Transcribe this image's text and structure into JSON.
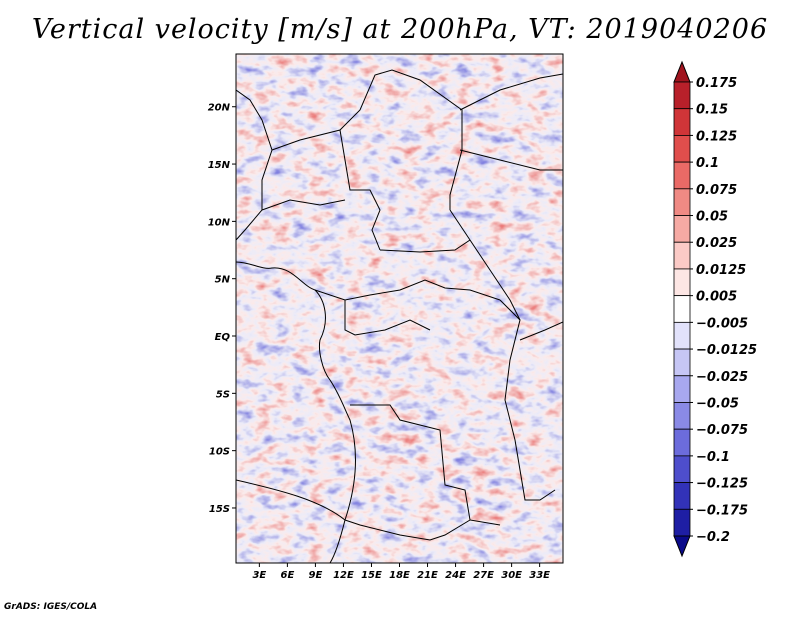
{
  "chart_data": {
    "type": "heatmap",
    "title": "Vertical velocity [m/s] at 200hPa, VT: 2019040206",
    "variable": "Vertical velocity",
    "units": "m/s",
    "level": "200hPa",
    "valid_time": "2019040206",
    "x_axis": {
      "ticks": [
        3,
        6,
        9,
        12,
        15,
        18,
        21,
        24,
        27,
        30,
        33
      ],
      "tick_labels": [
        "3E",
        "6E",
        "9E",
        "12E",
        "15E",
        "18E",
        "21E",
        "24E",
        "27E",
        "30E",
        "33E"
      ],
      "range": [
        0.5,
        35.5
      ]
    },
    "y_axis": {
      "ticks": [
        20,
        15,
        10,
        5,
        0,
        -5,
        -10,
        -15
      ],
      "tick_labels": [
        "20N",
        "15N",
        "10N",
        "5N",
        "EQ",
        "5S",
        "10S",
        "15S"
      ],
      "range": [
        -19.8,
        24.6
      ]
    },
    "colorbar": {
      "levels": [
        0.175,
        0.15,
        0.125,
        0.1,
        0.075,
        0.05,
        0.025,
        0.0125,
        0.005,
        -0.005,
        -0.0125,
        -0.025,
        -0.05,
        -0.075,
        -0.1,
        -0.125,
        -0.175,
        -0.2
      ],
      "labels": [
        "0.175",
        "0.15",
        "0.125",
        "0.1",
        "0.075",
        "0.05",
        "0.025",
        "0.0125",
        "0.005",
        "−0.005",
        "−0.0125",
        "−0.025",
        "−0.05",
        "−0.075",
        "−0.1",
        "−0.125",
        "−0.175",
        "−0.2"
      ],
      "colors": [
        "#a0141e",
        "#b8202a",
        "#d03538",
        "#e04e4c",
        "#ea6a66",
        "#f08a84",
        "#f6aaa4",
        "#fbcac6",
        "#fde6e4",
        "#ffffff",
        "#e2e2fb",
        "#c6c6f5",
        "#a8a8ef",
        "#8a8ae6",
        "#6c6cdc",
        "#4e4ecc",
        "#3232b8",
        "#1e1ea4",
        "#0a0a8a"
      ]
    }
  },
  "footer": "GrADS: IGES/COLA"
}
